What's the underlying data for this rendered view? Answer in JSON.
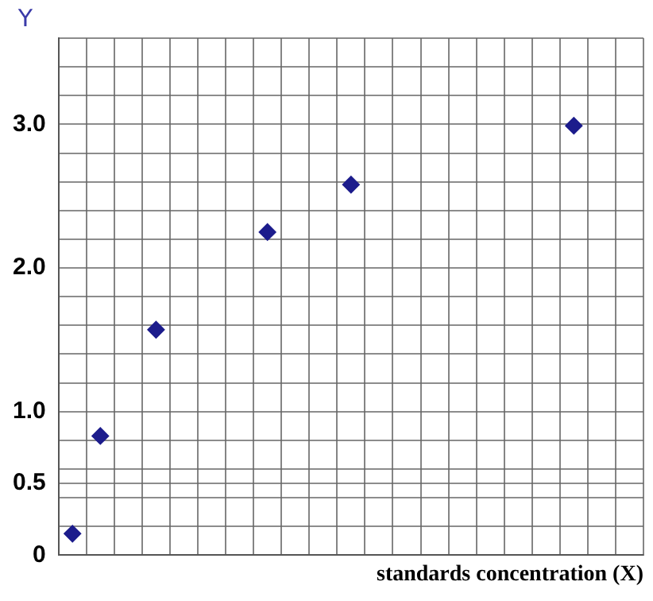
{
  "chart_data": {
    "type": "scatter",
    "xlabel": "standards concentration (X)",
    "ylabel": "Y",
    "categories": [
      null,
      null,
      null,
      null,
      null,
      null,
      null,
      null,
      null,
      null,
      null,
      null,
      null,
      null,
      null,
      null,
      null,
      null,
      null,
      null,
      null
    ],
    "series": [
      {
        "color": "#1c1c8c",
        "values": [
          0.15,
          0.83,
          null,
          1.57,
          null,
          null,
          null,
          2.25,
          null,
          null,
          2.58,
          null,
          null,
          null,
          null,
          null,
          null,
          null,
          2.99,
          null,
          null
        ]
      }
    ],
    "ylim": [
      0,
      3.6
    ],
    "yticks": [
      0,
      {
        "value": 0.2,
        "label": null
      },
      {
        "value": 0.4,
        "label": null
      },
      0.5,
      {
        "value": 0.6,
        "label": null
      },
      {
        "value": 0.8,
        "label": null
      },
      {
        "value": 1,
        "label": "1.0"
      },
      {
        "value": 1.2,
        "label": null
      },
      {
        "value": 1.4,
        "label": null
      },
      {
        "value": 1.6,
        "label": null
      },
      {
        "value": 1.8,
        "label": null
      },
      {
        "value": 2,
        "label": "2.0"
      },
      {
        "value": 2.2,
        "label": null
      },
      {
        "value": 2.4,
        "label": null
      },
      {
        "value": 2.6,
        "label": null
      },
      {
        "value": 2.8,
        "label": null
      },
      {
        "value": 3,
        "label": "3.0"
      },
      {
        "value": 3.2,
        "label": null
      },
      {
        "value": 3.4,
        "label": null
      },
      {
        "value": 3.6,
        "label": null
      }
    ],
    "tick_labels": "y",
    "grid": true,
    "marker": "diamond"
  }
}
